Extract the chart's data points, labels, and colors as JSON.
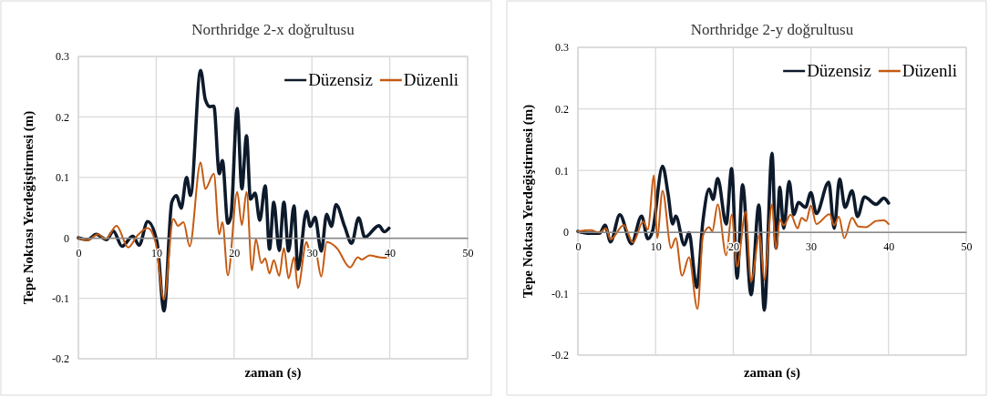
{
  "chart_data": [
    {
      "type": "line",
      "title": "Northridge 2-x doğrultusu",
      "xlabel": "zaman (s)",
      "ylabel": "Tepe Noktası Yerdeğiştirmesi (m)",
      "xlim": [
        0,
        50
      ],
      "xticks": [
        0,
        10,
        20,
        30,
        40,
        50
      ],
      "ylim": [
        -0.2,
        0.3
      ],
      "yticks": [
        -0.2,
        -0.1,
        0,
        0.1,
        0.2,
        0.3
      ],
      "grid": true,
      "legend": "top right",
      "series": [
        {
          "name": "Düzensiz",
          "color": "#0d1a2b",
          "x": [
            0,
            1.2,
            2.3,
            3.6,
            4.5,
            5.6,
            7,
            7.8,
            8.9,
            10.1,
            11,
            12,
            12.6,
            13.2,
            13.9,
            14.4,
            15.7,
            16.3,
            16.9,
            17.4,
            18.1,
            18.5,
            19.2,
            19.6,
            20.4,
            21,
            21.6,
            22.1,
            22.7,
            23.3,
            24.0,
            24.55,
            25.1,
            25.8,
            26.4,
            27.0,
            27.7,
            28.2,
            29.3,
            29.8,
            30.4,
            31.2,
            31.9,
            32.5,
            33.1,
            34.2,
            35.1,
            36.0,
            36.8,
            38.6,
            39.3,
            39.9
          ],
          "values": [
            0,
            -0.003,
            0.006,
            -0.003,
            0.011,
            -0.014,
            0.003,
            -0.012,
            0.027,
            -0.007,
            -0.121,
            0.059,
            0.07,
            0.049,
            0.1,
            0.07,
            0.277,
            0.229,
            0.217,
            0.218,
            0.106,
            0.128,
            0.024,
            0.036,
            0.214,
            0.081,
            0.169,
            0.064,
            0.074,
            0.029,
            0.086,
            -0.019,
            0.059,
            -0.021,
            0.059,
            -0.022,
            0.053,
            -0.052,
            0.044,
            0.019,
            0.034,
            -0.022,
            0.039,
            0.019,
            0.055,
            0.019,
            -0.009,
            0.033,
            0.001,
            0.02,
            0.01,
            0.016
          ]
        },
        {
          "name": "Düzenli",
          "color": "#c55a11",
          "x": [
            0,
            1.2,
            2.5,
            3.5,
            4.9,
            6.4,
            7.6,
            8.9,
            9.9,
            11,
            12.2,
            12.8,
            13.5,
            14.3,
            15.7,
            16.3,
            17.4,
            18.1,
            18.5,
            19.2,
            20.4,
            21.0,
            21.6,
            22.3,
            22.8,
            23.5,
            24.0,
            24.55,
            25.1,
            25.8,
            26.4,
            27.0,
            27.7,
            28.2,
            29.3,
            29.8,
            30.4,
            31.2,
            31.9,
            33.2,
            34.9,
            35.9,
            36.4,
            37.4,
            38.6,
            39.9
          ],
          "values": [
            0,
            -0.004,
            0.006,
            -0.002,
            0.02,
            -0.016,
            0.004,
            0.016,
            -0.007,
            -0.102,
            0.031,
            0.02,
            0.026,
            -0.014,
            0.125,
            0.081,
            0.106,
            0.006,
            0.026,
            -0.062,
            0.076,
            0.021,
            0.076,
            -0.054,
            -0.002,
            -0.042,
            -0.034,
            -0.059,
            -0.037,
            -0.063,
            -0.017,
            -0.067,
            -0.032,
            -0.083,
            -0.007,
            -0.027,
            -0.019,
            -0.064,
            -0.007,
            -0.017,
            -0.049,
            -0.032,
            -0.036,
            -0.029,
            -0.032,
            -0.033
          ]
        }
      ]
    },
    {
      "type": "line",
      "title": "Northridge 2-y doğrultusu",
      "xlabel": "zaman (s)",
      "ylabel": "Tepe Noktası Yerdeğiştirmesi (m)",
      "xlim": [
        0,
        50
      ],
      "xticks": [
        0,
        10,
        20,
        30,
        40,
        50
      ],
      "ylim": [
        -0.2,
        0.3
      ],
      "yticks": [
        -0.2,
        -0.1,
        0,
        0.1,
        0.2,
        0.3
      ],
      "grid": true,
      "legend": "top right",
      "series": [
        {
          "name": "Düzensiz",
          "color": "#0d1a2b",
          "x": [
            0,
            1.25,
            2.8,
            3.5,
            4.2,
            5.4,
            6.9,
            8.2,
            9.0,
            9.6,
            10.9,
            11.6,
            12.2,
            12.6,
            13.7,
            14.3,
            15.3,
            16.1,
            16.9,
            17.4,
            18.0,
            19.1,
            19.8,
            20.5,
            21.2,
            22.3,
            23.3,
            24.0,
            25.0,
            25.5,
            26.0,
            26.5,
            27.2,
            27.8,
            28.4,
            29.3,
            30.0,
            30.7,
            32.3,
            33.0,
            33.7,
            34.4,
            35.3,
            36.0,
            36.9,
            38.4,
            39.4,
            40.0
          ],
          "values": [
            0.001,
            -0.002,
            -0.002,
            0.011,
            -0.016,
            0.028,
            -0.019,
            0.026,
            -0.011,
            0.001,
            0.107,
            0.063,
            0.013,
            0.026,
            -0.021,
            -0.001,
            -0.09,
            0.018,
            0.07,
            0.053,
            0.087,
            0.013,
            0.103,
            -0.075,
            0.077,
            -0.102,
            0.044,
            -0.127,
            0.128,
            -0.026,
            0.073,
            0.006,
            0.082,
            0.028,
            0.048,
            0.04,
            0.064,
            0.03,
            0.081,
            0.006,
            0.086,
            0.04,
            0.067,
            0.025,
            0.057,
            0.045,
            0.055,
            0.047
          ]
        },
        {
          "name": "Düzenli",
          "color": "#c55a11",
          "x": [
            0,
            1.6,
            2.8,
            3.6,
            4.2,
            5.9,
            7.1,
            8.4,
            9.0,
            9.8,
            10.2,
            10.9,
            12.0,
            12.6,
            13.4,
            14.3,
            15.4,
            16.1,
            16.9,
            17.3,
            18.0,
            19.1,
            19.8,
            20.5,
            21.6,
            22.3,
            23.4,
            24.0,
            25.0,
            25.5,
            26.0,
            26.5,
            27.4,
            28.3,
            28.8,
            29.4,
            30.0,
            30.7,
            32.4,
            33.0,
            33.6,
            34.3,
            35.3,
            36.1,
            37.1,
            38.4,
            39.4,
            40.0
          ],
          "values": [
            0.001,
            0.003,
            -0.001,
            0.006,
            -0.012,
            0.011,
            -0.017,
            0.017,
            0.004,
            0.092,
            -0.01,
            0.067,
            -0.026,
            -0.01,
            -0.071,
            -0.041,
            -0.125,
            -0.006,
            0.008,
            0.001,
            0.045,
            -0.038,
            0.028,
            -0.056,
            0.033,
            -0.08,
            -0.004,
            -0.078,
            0.045,
            -0.028,
            0.02,
            0.011,
            0.028,
            0.006,
            0.023,
            0.018,
            0.043,
            0.013,
            0.029,
            0.011,
            0.025,
            -0.01,
            0.023,
            0.009,
            0.008,
            0.018,
            0.019,
            0.013
          ]
        }
      ]
    }
  ]
}
